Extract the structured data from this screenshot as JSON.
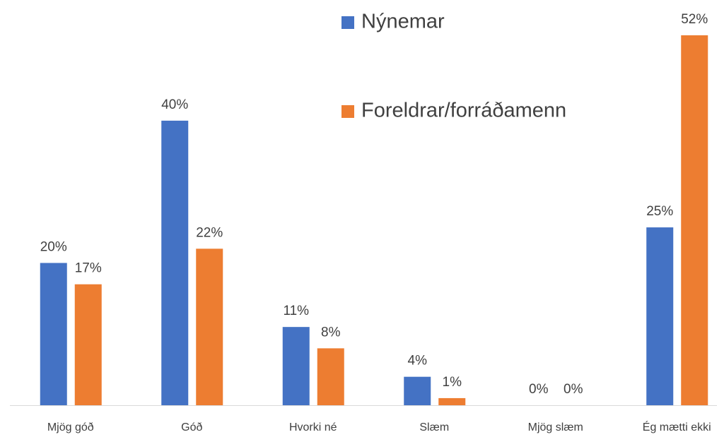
{
  "chart_data": {
    "type": "bar",
    "categories": [
      "Mjög góð",
      "Góð",
      "Hvorki né",
      "Slæm",
      "Mjög slæm",
      "Ég mætti ekki"
    ],
    "series": [
      {
        "name": "Nýnemar",
        "color": "#4472c4",
        "values": [
          20,
          40,
          11,
          4,
          0,
          25
        ],
        "value_labels": [
          "20%",
          "40%",
          "11%",
          "4%",
          "0%",
          "25%"
        ]
      },
      {
        "name": "Foreldrar/forráðamenn",
        "color": "#ed7d31",
        "values": [
          17,
          22,
          8,
          1,
          0,
          52
        ],
        "value_labels": [
          "17%",
          "22%",
          "8%",
          "1%",
          "0%",
          "52%"
        ]
      }
    ]
  }
}
